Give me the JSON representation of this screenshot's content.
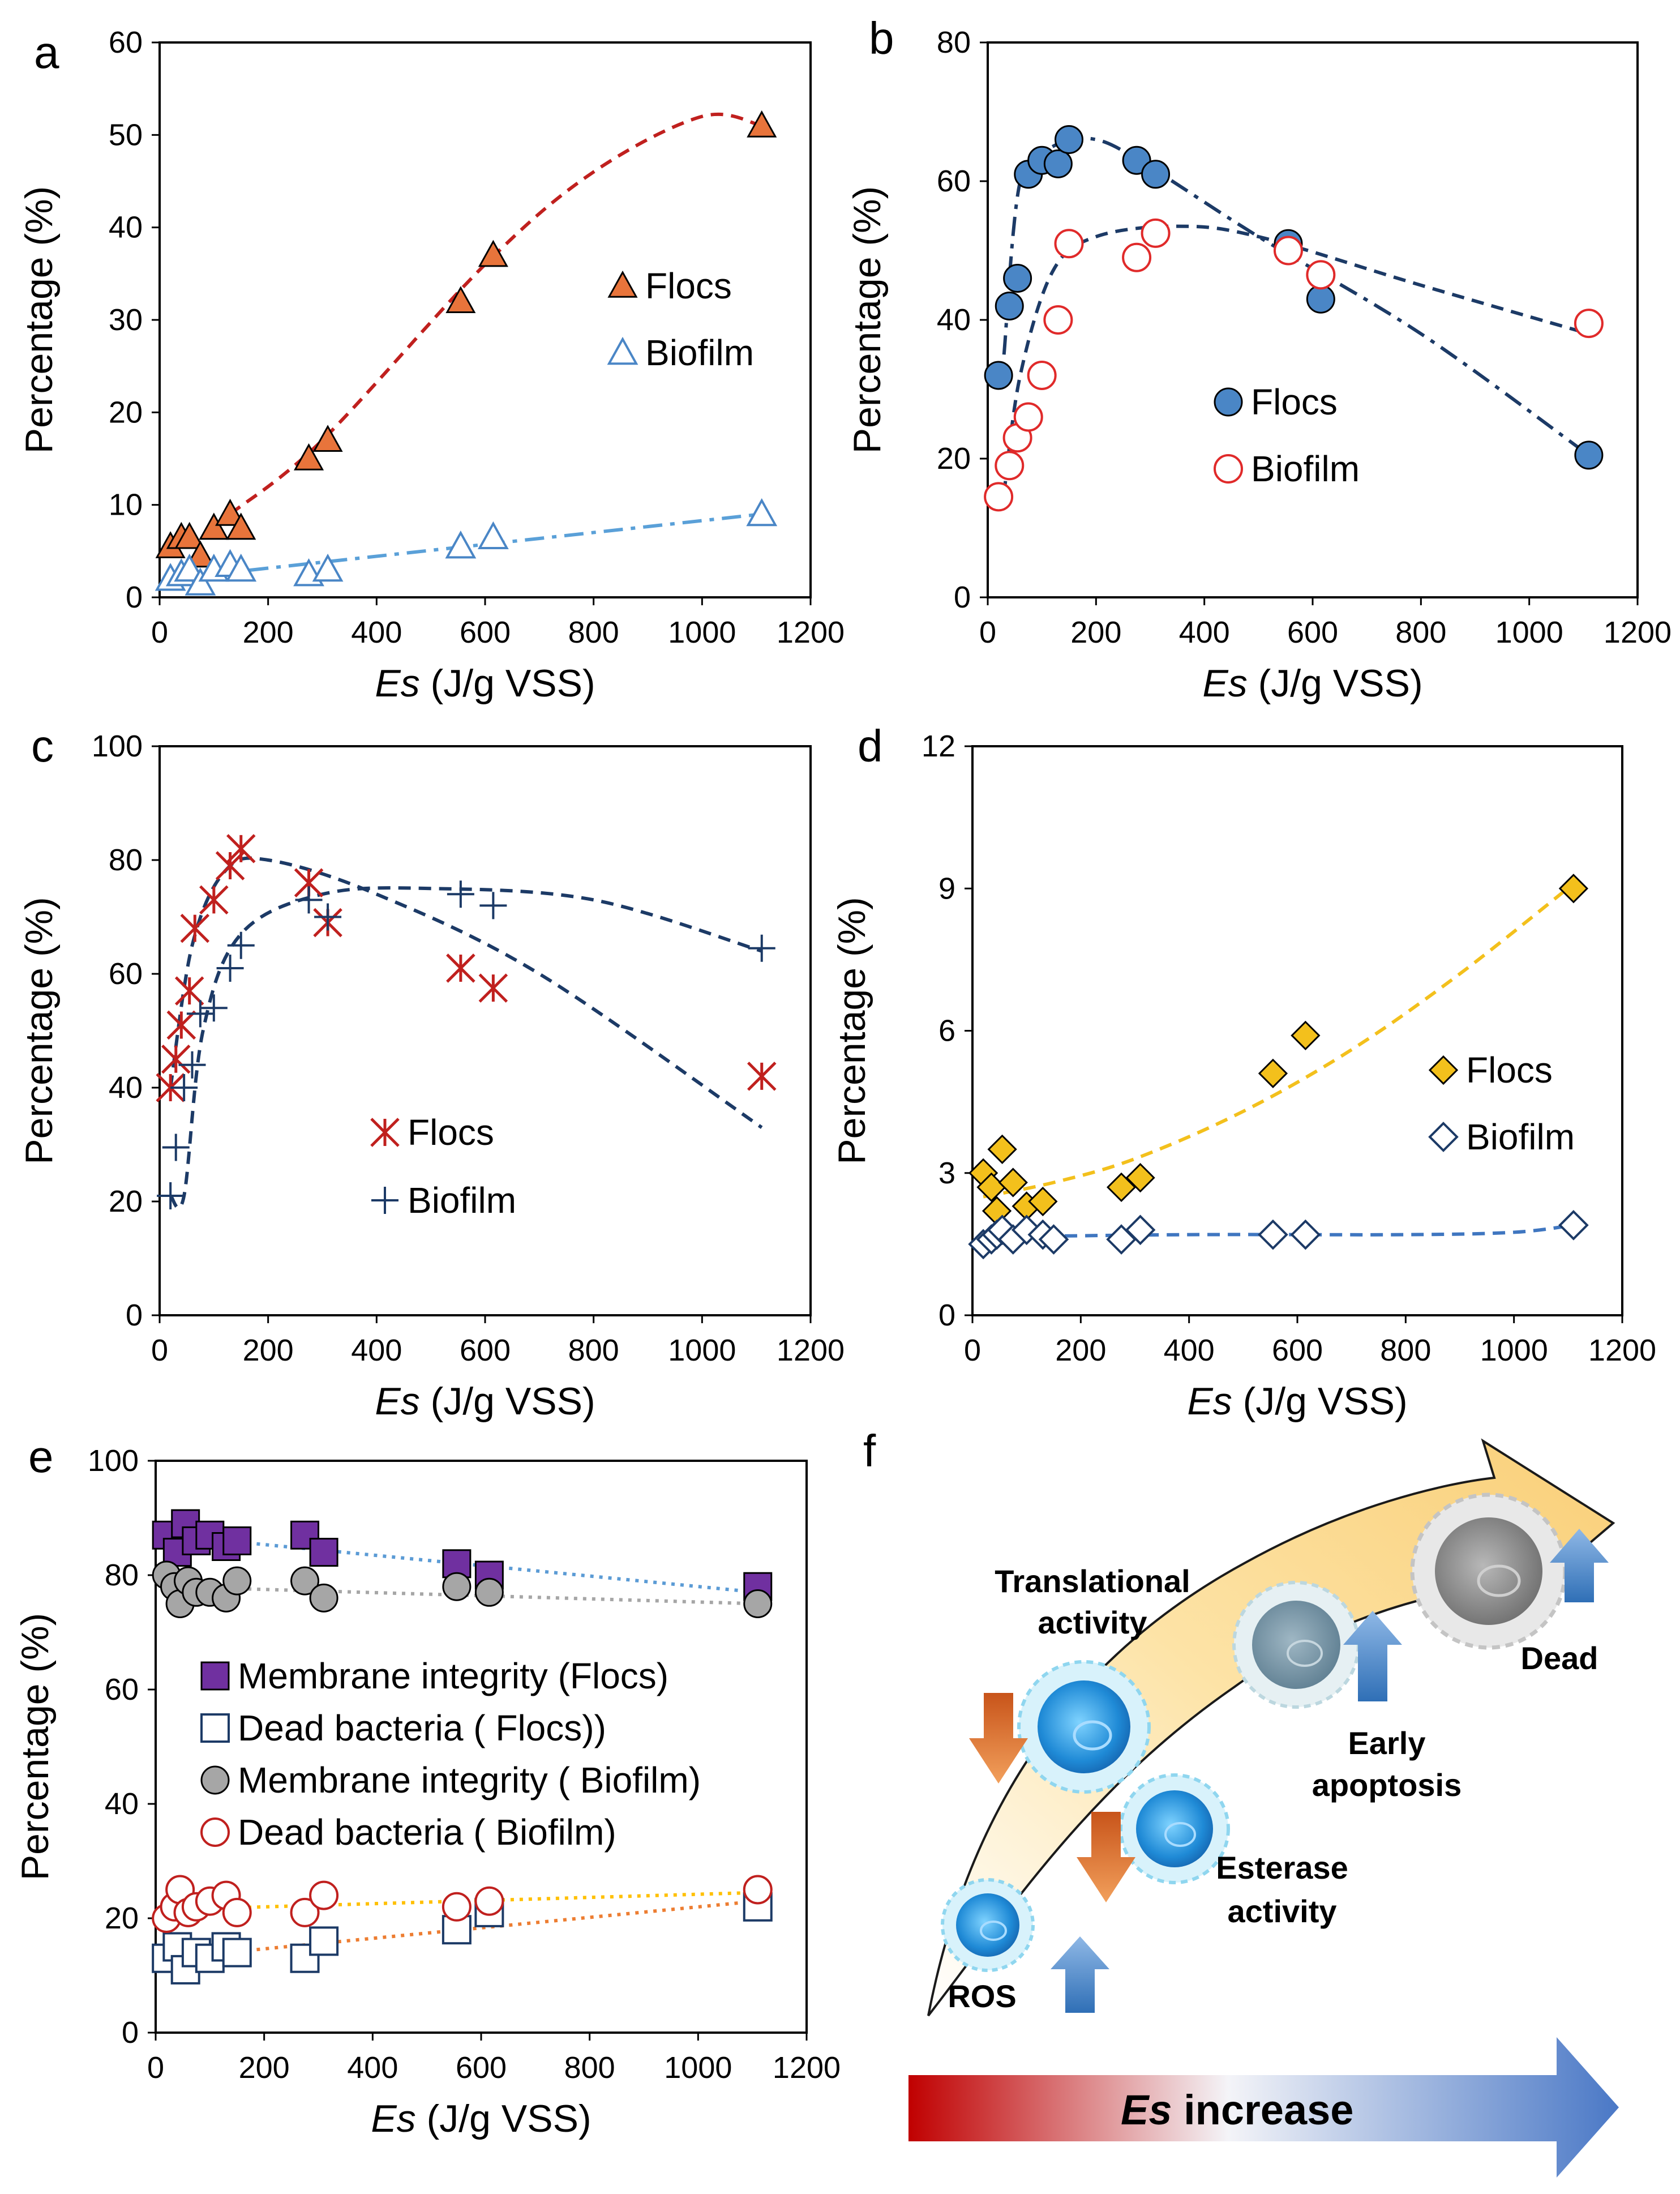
{
  "chart_data": [
    {
      "panel": "a",
      "type": "scatter",
      "xlabel_italic": "Es",
      "xlabel_rest": " (J/g VSS)",
      "ylabel": "Percentage (%)",
      "xlim": [
        0,
        1200
      ],
      "ylim": [
        0,
        60
      ],
      "xticks": [
        0,
        200,
        400,
        600,
        800,
        1000,
        1200
      ],
      "yticks": [
        0,
        10,
        20,
        30,
        40,
        50,
        60
      ],
      "legend_position": "right-middle",
      "series": [
        {
          "name": "Flocs",
          "marker": "triangle-filled",
          "color": "#e8743b",
          "x": [
            20,
            40,
            55,
            75,
            100,
            130,
            150,
            275,
            310,
            555,
            615,
            1110
          ],
          "y": [
            5.5,
            6.5,
            6.5,
            4.5,
            7.5,
            9,
            7.5,
            15,
            17,
            32,
            37,
            51
          ],
          "trend": {
            "style": "dashed",
            "color": "#c0201e",
            "x": [
              130,
              300,
              600,
              800,
              1000,
              1110
            ],
            "y": [
              9,
              17,
              36,
              46,
              52,
              51
            ]
          }
        },
        {
          "name": "Biofilm",
          "marker": "triangle-open",
          "color": "#4a86c6",
          "x": [
            20,
            40,
            55,
            75,
            100,
            130,
            150,
            275,
            310,
            555,
            615,
            1110
          ],
          "y": [
            2,
            2.5,
            3,
            1.5,
            3,
            3.5,
            3,
            2.5,
            3,
            5.5,
            6.5,
            9
          ],
          "trend": {
            "style": "dashdot",
            "color": "#5aa0d8",
            "x": [
              20,
              1110
            ],
            "y": [
              2,
              9
            ]
          }
        }
      ]
    },
    {
      "panel": "b",
      "type": "scatter",
      "xlabel_italic": "Es",
      "xlabel_rest": " (J/g VSS)",
      "ylabel": "Percentage (%)",
      "xlim": [
        0,
        1200
      ],
      "ylim": [
        0,
        80
      ],
      "xticks": [
        0,
        200,
        400,
        600,
        800,
        1000,
        1200
      ],
      "yticks": [
        0,
        20,
        40,
        60,
        80
      ],
      "legend_position": "center-left",
      "series": [
        {
          "name": "Flocs",
          "marker": "circle-filled",
          "color": "#4a86c6",
          "x": [
            20,
            40,
            55,
            75,
            100,
            130,
            150,
            275,
            310,
            555,
            615,
            1110
          ],
          "y": [
            32,
            42,
            46,
            61,
            63,
            62.5,
            66,
            63,
            61,
            51,
            43,
            20.5
          ],
          "trend": {
            "style": "dashdot",
            "color": "#1c3a66",
            "x": [
              30,
              60,
              120,
              200,
              300,
              500,
              800,
              1110
            ],
            "y": [
              35,
              60,
              65,
              66,
              62,
              52,
              38,
              20.5
            ]
          }
        },
        {
          "name": "Biofilm",
          "marker": "circle-open",
          "color": "#e02a2a",
          "x": [
            20,
            40,
            55,
            75,
            100,
            130,
            150,
            275,
            310,
            555,
            615,
            1110
          ],
          "y": [
            14.5,
            19,
            23,
            26,
            32,
            40,
            51,
            49,
            52.5,
            50,
            46.5,
            39.5
          ],
          "trend": {
            "style": "dashed",
            "color": "#1c3a66",
            "x": [
              30,
              60,
              120,
              200,
              350,
              500,
              800,
              1110
            ],
            "y": [
              15,
              32,
              47,
              52,
              53.5,
              52,
              45,
              38
            ]
          }
        }
      ]
    },
    {
      "panel": "c",
      "type": "scatter",
      "xlabel_italic": "Es",
      "xlabel_rest": " (J/g VSS)",
      "ylabel": "Percentage (%)",
      "xlim": [
        0,
        1200
      ],
      "ylim": [
        0,
        100
      ],
      "xticks": [
        0,
        200,
        400,
        600,
        800,
        1000,
        1200
      ],
      "yticks": [
        0,
        20,
        40,
        60,
        80,
        100
      ],
      "legend_position": "bottom-center",
      "series": [
        {
          "name": "Flocs",
          "marker": "asterisk",
          "color": "#c0201e",
          "x": [
            20,
            30,
            40,
            55,
            65,
            100,
            130,
            150,
            275,
            310,
            555,
            615,
            1110
          ],
          "y": [
            40,
            45,
            51,
            57,
            68,
            73,
            79,
            82,
            76,
            69,
            61,
            57.5,
            42
          ],
          "trend": {
            "style": "dashed",
            "color": "#1c3a66",
            "x": [
              20,
              60,
              120,
              200,
              400,
              700,
              1110
            ],
            "y": [
              40,
              65,
              78,
              80,
              74,
              60,
              33
            ]
          }
        },
        {
          "name": "Biofilm",
          "marker": "plus",
          "color": "#1c3a66",
          "x": [
            20,
            30,
            45,
            60,
            75,
            100,
            130,
            150,
            275,
            310,
            555,
            615,
            1110
          ],
          "y": [
            21,
            29.5,
            40,
            44,
            53,
            54,
            61,
            65,
            73,
            70,
            74,
            72,
            64.5
          ],
          "trend": {
            "style": "dashed",
            "color": "#1c3a66",
            "x": [
              20,
              45,
              80,
              150,
              300,
              500,
              800,
              1110
            ],
            "y": [
              21,
              21,
              50,
              67,
              74,
              75,
              73,
              64
            ]
          }
        }
      ]
    },
    {
      "panel": "d",
      "type": "scatter",
      "xlabel_italic": "Es",
      "xlabel_rest": " (J/g VSS)",
      "ylabel": "Percentage (%)",
      "xlim": [
        0,
        1200
      ],
      "ylim": [
        0,
        12
      ],
      "xticks": [
        0,
        200,
        400,
        600,
        800,
        1000,
        1200
      ],
      "yticks": [
        0,
        3,
        6,
        9,
        12
      ],
      "legend_position": "right-middle",
      "series": [
        {
          "name": "Flocs",
          "marker": "diamond-filled",
          "color": "#f3c01c",
          "x": [
            20,
            35,
            45,
            55,
            75,
            100,
            130,
            150,
            275,
            310,
            555,
            615,
            1110
          ],
          "y": [
            3,
            2.7,
            2.2,
            3.5,
            2.8,
            2.3,
            2.4,
            1.6,
            2.7,
            2.9,
            5.1,
            5.9,
            9
          ],
          "trend": {
            "style": "dashed",
            "color": "#f3c01c",
            "x": [
              20,
              150,
              300,
              500,
              700,
              900,
              1110
            ],
            "y": [
              2.5,
              2.8,
              3.3,
              4.3,
              5.6,
              7.2,
              9.1
            ]
          }
        },
        {
          "name": "Biofilm",
          "marker": "diamond-open",
          "color": "#1c3a66",
          "x": [
            20,
            35,
            45,
            55,
            75,
            100,
            130,
            150,
            275,
            310,
            555,
            615,
            1110
          ],
          "y": [
            1.5,
            1.6,
            1.7,
            1.8,
            1.6,
            1.8,
            1.7,
            1.6,
            1.6,
            1.8,
            1.7,
            1.7,
            1.9
          ],
          "trend": {
            "style": "dashed",
            "color": "#3f76c0",
            "x": [
              20,
              400,
              800,
              1000,
              1110
            ],
            "y": [
              1.65,
              1.7,
              1.7,
              1.75,
              1.9
            ]
          }
        }
      ]
    },
    {
      "panel": "e",
      "type": "scatter",
      "xlabel_italic": "Es",
      "xlabel_rest": " (J/g VSS)",
      "ylabel": "Percentage (%)",
      "xlim": [
        0,
        1200
      ],
      "ylim": [
        0,
        100
      ],
      "xticks": [
        0,
        200,
        400,
        600,
        800,
        1000,
        1200
      ],
      "yticks": [
        0,
        20,
        40,
        60,
        80,
        100
      ],
      "legend_position": "center-left",
      "series": [
        {
          "name": "Membrane integrity (Flocs)",
          "marker": "square-filled",
          "color": "#7030a0",
          "x": [
            20,
            40,
            55,
            75,
            100,
            130,
            150,
            275,
            310,
            555,
            615,
            1110
          ],
          "y": [
            87,
            84,
            89,
            86,
            87,
            85,
            86,
            87,
            84,
            82,
            80,
            78
          ],
          "trend": {
            "style": "dotted",
            "color": "#5b9bd5",
            "x": [
              20,
              1110
            ],
            "y": [
              87,
              77
            ]
          }
        },
        {
          "name": "Dead bacteria ( Flocs))",
          "marker": "square-open",
          "color": "#1c3a66",
          "x": [
            20,
            40,
            55,
            75,
            100,
            130,
            150,
            275,
            310,
            555,
            615,
            1110
          ],
          "y": [
            13,
            15,
            11,
            14,
            13,
            15,
            14,
            13,
            16,
            18,
            21,
            22
          ],
          "trend": {
            "style": "dotted",
            "color": "#ed7d31",
            "x": [
              20,
              1110
            ],
            "y": [
              13,
              23
            ]
          }
        },
        {
          "name": "Membrane integrity ( Biofilm)",
          "marker": "circle-filled",
          "color": "#a6a6a6",
          "x": [
            20,
            35,
            45,
            60,
            75,
            100,
            130,
            150,
            275,
            310,
            555,
            615,
            1110
          ],
          "y": [
            80,
            78,
            75,
            79,
            77,
            77,
            76,
            79,
            79,
            76,
            78,
            77,
            75
          ],
          "trend": {
            "style": "dotted",
            "color": "#a6a6a6",
            "x": [
              20,
              1110
            ],
            "y": [
              78,
              75
            ]
          }
        },
        {
          "name": "Dead bacteria ( Biofilm)",
          "marker": "circle-open",
          "color": "#c0201e",
          "x": [
            20,
            35,
            45,
            60,
            75,
            100,
            130,
            150,
            275,
            310,
            555,
            615,
            1110
          ],
          "y": [
            20,
            22,
            25,
            21,
            22,
            23,
            24,
            21,
            21,
            24,
            22,
            23,
            25
          ],
          "trend": {
            "style": "dotted",
            "color": "#ffc000",
            "x": [
              20,
              1110
            ],
            "y": [
              21.5,
              24.5
            ]
          }
        }
      ]
    }
  ],
  "panel_f": {
    "letter": "f",
    "labels": {
      "translational": [
        "Translational",
        "activity"
      ],
      "early": [
        "Early",
        "apoptosis"
      ],
      "esterase": [
        "Esterase",
        "activity"
      ],
      "dead": "Dead",
      "ros": "ROS"
    },
    "bottom_arrow": {
      "italic": "Es",
      "rest": " increase"
    },
    "colors": {
      "arrow_red": "#c00000",
      "arrow_blue": "#5b8ed0",
      "band": "#fbd98c",
      "up_arrow": "#3f76c0",
      "down_arrow": "#d46a1c",
      "cell": "#2f8fd6",
      "dead_cell": "#a6a6a6"
    }
  }
}
